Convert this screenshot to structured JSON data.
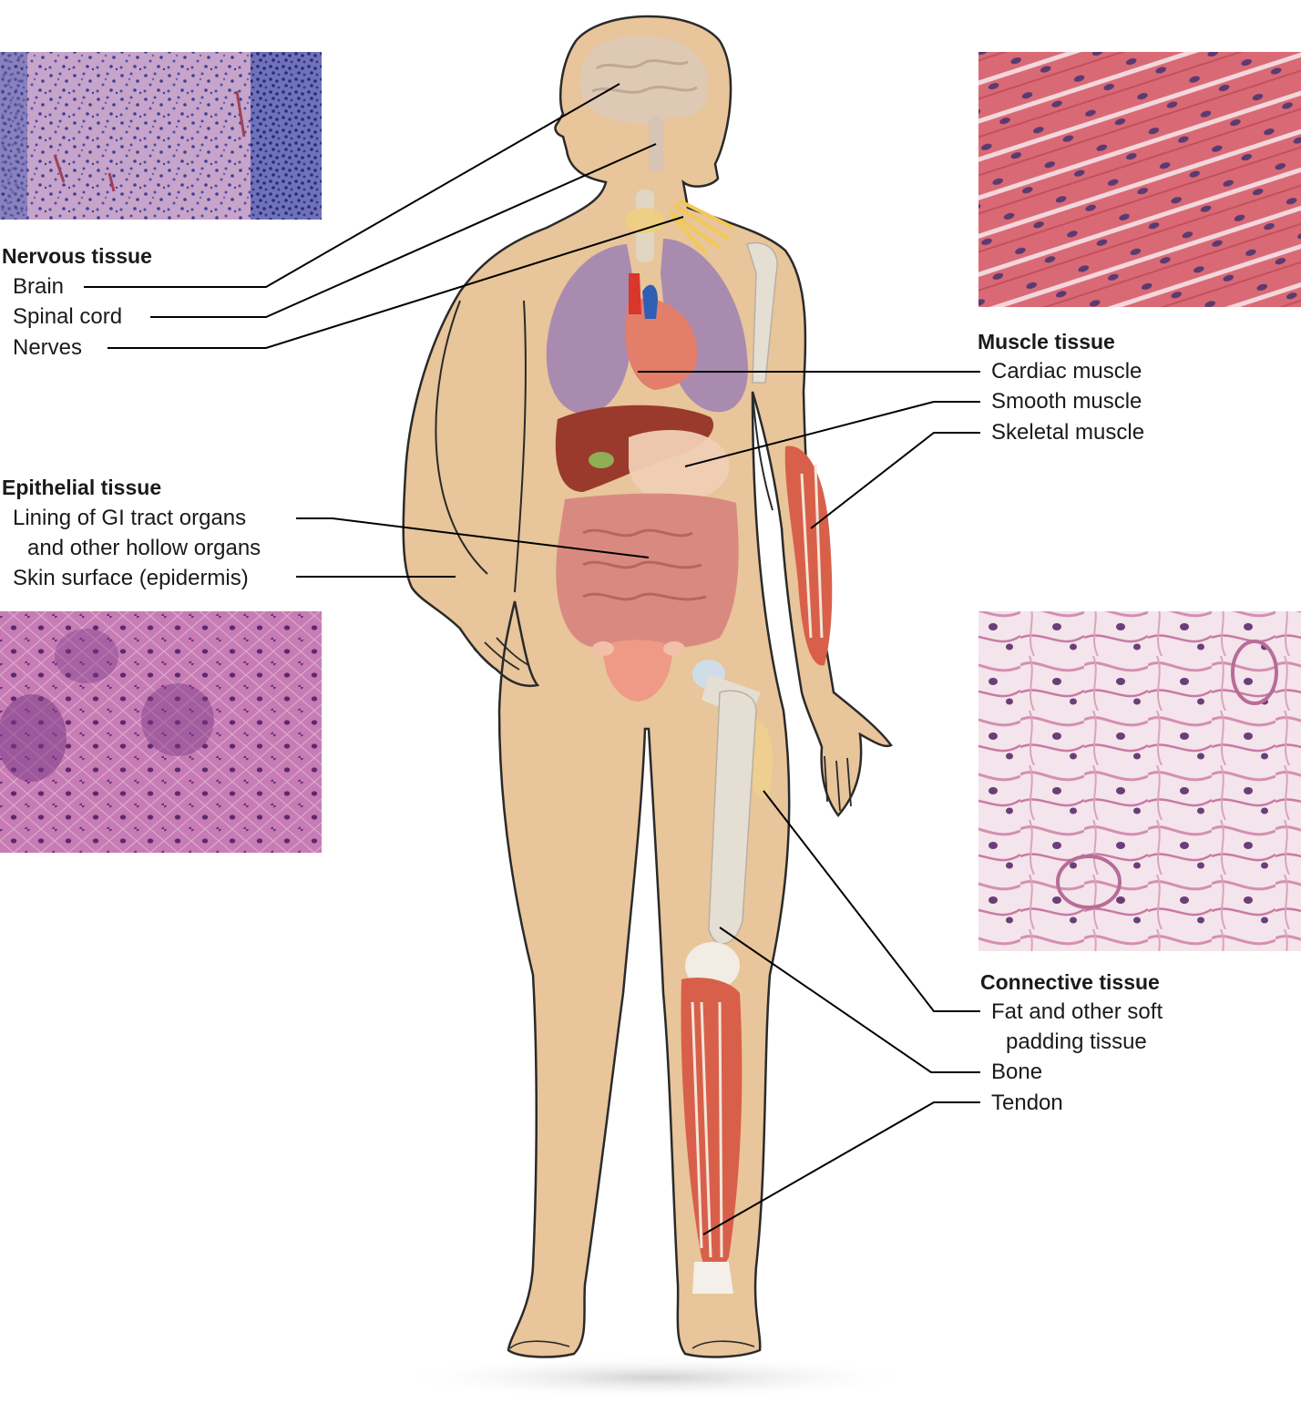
{
  "nervous": {
    "heading": "Nervous tissue",
    "items": [
      "Brain",
      "Spinal cord",
      "Nerves"
    ]
  },
  "epithelial": {
    "heading": "Epithelial tissue",
    "items": [
      "Lining of GI tract organs",
      "and other hollow organs",
      "Skin surface (epidermis)"
    ]
  },
  "muscle": {
    "heading": "Muscle tissue",
    "items": [
      "Cardiac muscle",
      "Smooth muscle",
      "Skeletal muscle"
    ]
  },
  "connective": {
    "heading": "Connective tissue",
    "items": [
      "Fat and other soft",
      "padding tissue",
      "Bone",
      "Tendon"
    ]
  },
  "colors": {
    "skin": "#e8c59a",
    "lung": "#a98bb0",
    "liver": "#9a3a2c",
    "intestine": "#d98a80",
    "heart": "#d9584a",
    "bone": "#e5ded2",
    "muscle": "#d8604a",
    "nervous_stain": "#8f7bb8",
    "epithelial_stain": "#b9659d",
    "cardiac_stain": "#d8707e",
    "connective_stain": "#e9c3d3"
  }
}
